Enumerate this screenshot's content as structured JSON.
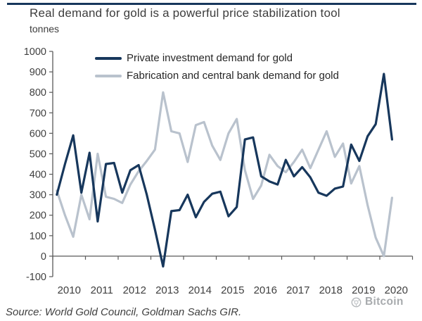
{
  "header": {
    "title": "Real demand for gold is a powerful price stabilization tool",
    "subtitle": "tonnes"
  },
  "legend": [
    {
      "label": "Private investment demand for gold",
      "color": "#17375c"
    },
    {
      "label": "Fabrication and central bank demand for gold",
      "color": "#b9c2cd"
    }
  ],
  "chart_data": {
    "type": "line",
    "title": "Real demand for gold is a powerful price stabilization tool",
    "ylabel": "tonnes",
    "ylim": [
      -100,
      1000
    ],
    "y_ticks": [
      1000,
      900,
      800,
      700,
      600,
      500,
      400,
      300,
      200,
      100,
      0,
      -100
    ],
    "grid": false,
    "legend_position": "top-inside",
    "year_labels": [
      "2010",
      "2011",
      "2012",
      "2013",
      "2014",
      "2015",
      "2016",
      "2017",
      "2018",
      "2019",
      "2020"
    ],
    "x_slots_total": 44,
    "x": [
      "2010Q1",
      "2010Q2",
      "2010Q3",
      "2010Q4",
      "2011Q1",
      "2011Q2",
      "2011Q3",
      "2011Q4",
      "2012Q1",
      "2012Q2",
      "2012Q3",
      "2012Q4",
      "2013Q1",
      "2013Q2",
      "2013Q3",
      "2013Q4",
      "2014Q1",
      "2014Q2",
      "2014Q3",
      "2014Q4",
      "2015Q1",
      "2015Q2",
      "2015Q3",
      "2015Q4",
      "2016Q1",
      "2016Q2",
      "2016Q3",
      "2016Q4",
      "2017Q1",
      "2017Q2",
      "2017Q3",
      "2017Q4",
      "2018Q1",
      "2018Q2",
      "2018Q3",
      "2018Q4",
      "2019Q1",
      "2019Q2",
      "2019Q3",
      "2019Q4",
      "2020Q1",
      "2020Q2"
    ],
    "series": [
      {
        "name": "Private investment demand for gold",
        "color": "#17375c",
        "stroke_width": 3.2,
        "values": [
          300,
          450,
          590,
          310,
          505,
          170,
          450,
          455,
          310,
          420,
          445,
          300,
          130,
          -50,
          220,
          225,
          300,
          190,
          265,
          305,
          315,
          195,
          240,
          570,
          580,
          390,
          365,
          350,
          470,
          390,
          435,
          385,
          310,
          295,
          330,
          340,
          545,
          465,
          585,
          645,
          890,
          570
        ]
      },
      {
        "name": "Fabrication and central bank demand for gold",
        "color": "#b9c2cd",
        "stroke_width": 3.2,
        "values": [
          320,
          200,
          95,
          300,
          180,
          500,
          290,
          280,
          260,
          350,
          415,
          465,
          520,
          800,
          610,
          600,
          460,
          640,
          655,
          540,
          470,
          600,
          670,
          420,
          280,
          345,
          495,
          440,
          410,
          460,
          520,
          430,
          520,
          610,
          485,
          550,
          355,
          440,
          250,
          90,
          0,
          285
        ]
      }
    ],
    "axis_color": "#595959",
    "tick_label_color": "#404040"
  },
  "source": {
    "text": "Source: World Gold Council, Goldman Sachs GIR."
  },
  "watermark": {
    "icon": "coin-logo-icon",
    "label": "Bitcoin",
    "color": "#a8abae"
  }
}
